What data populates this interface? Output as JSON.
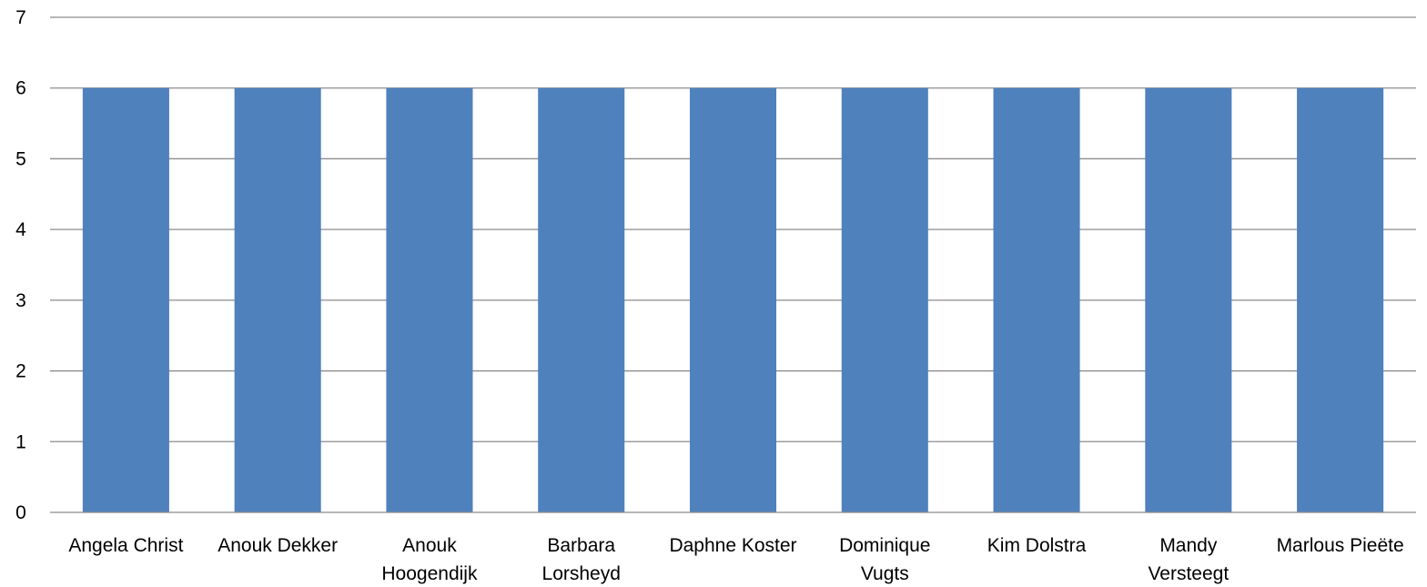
{
  "chart_data": {
    "type": "bar",
    "categories": [
      "Angela Christ",
      "Anouk Dekker",
      "Anouk Hoogendijk",
      "Barbara Lorsheyd",
      "Daphne Koster",
      "Dominique Vugts",
      "Kim Dolstra",
      "Mandy Versteegt",
      "Marlous Pieëte"
    ],
    "category_label_lines": [
      [
        "Angela Christ"
      ],
      [
        "Anouk Dekker"
      ],
      [
        "Anouk",
        "Hoogendijk"
      ],
      [
        "Barbara",
        "Lorsheyd"
      ],
      [
        "Daphne Koster"
      ],
      [
        "Dominique",
        "Vugts"
      ],
      [
        "Kim Dolstra"
      ],
      [
        "Mandy",
        "Versteegt"
      ],
      [
        "Marlous Pieëte"
      ]
    ],
    "values": [
      6,
      6,
      6,
      6,
      6,
      6,
      6,
      6,
      6
    ],
    "ylim": [
      0,
      7
    ],
    "yticks": [
      0,
      1,
      2,
      3,
      4,
      5,
      6,
      7
    ],
    "grid": true,
    "legend": "none",
    "bar_color": "#4f81bd",
    "grid_color": "#8c8c8c"
  }
}
